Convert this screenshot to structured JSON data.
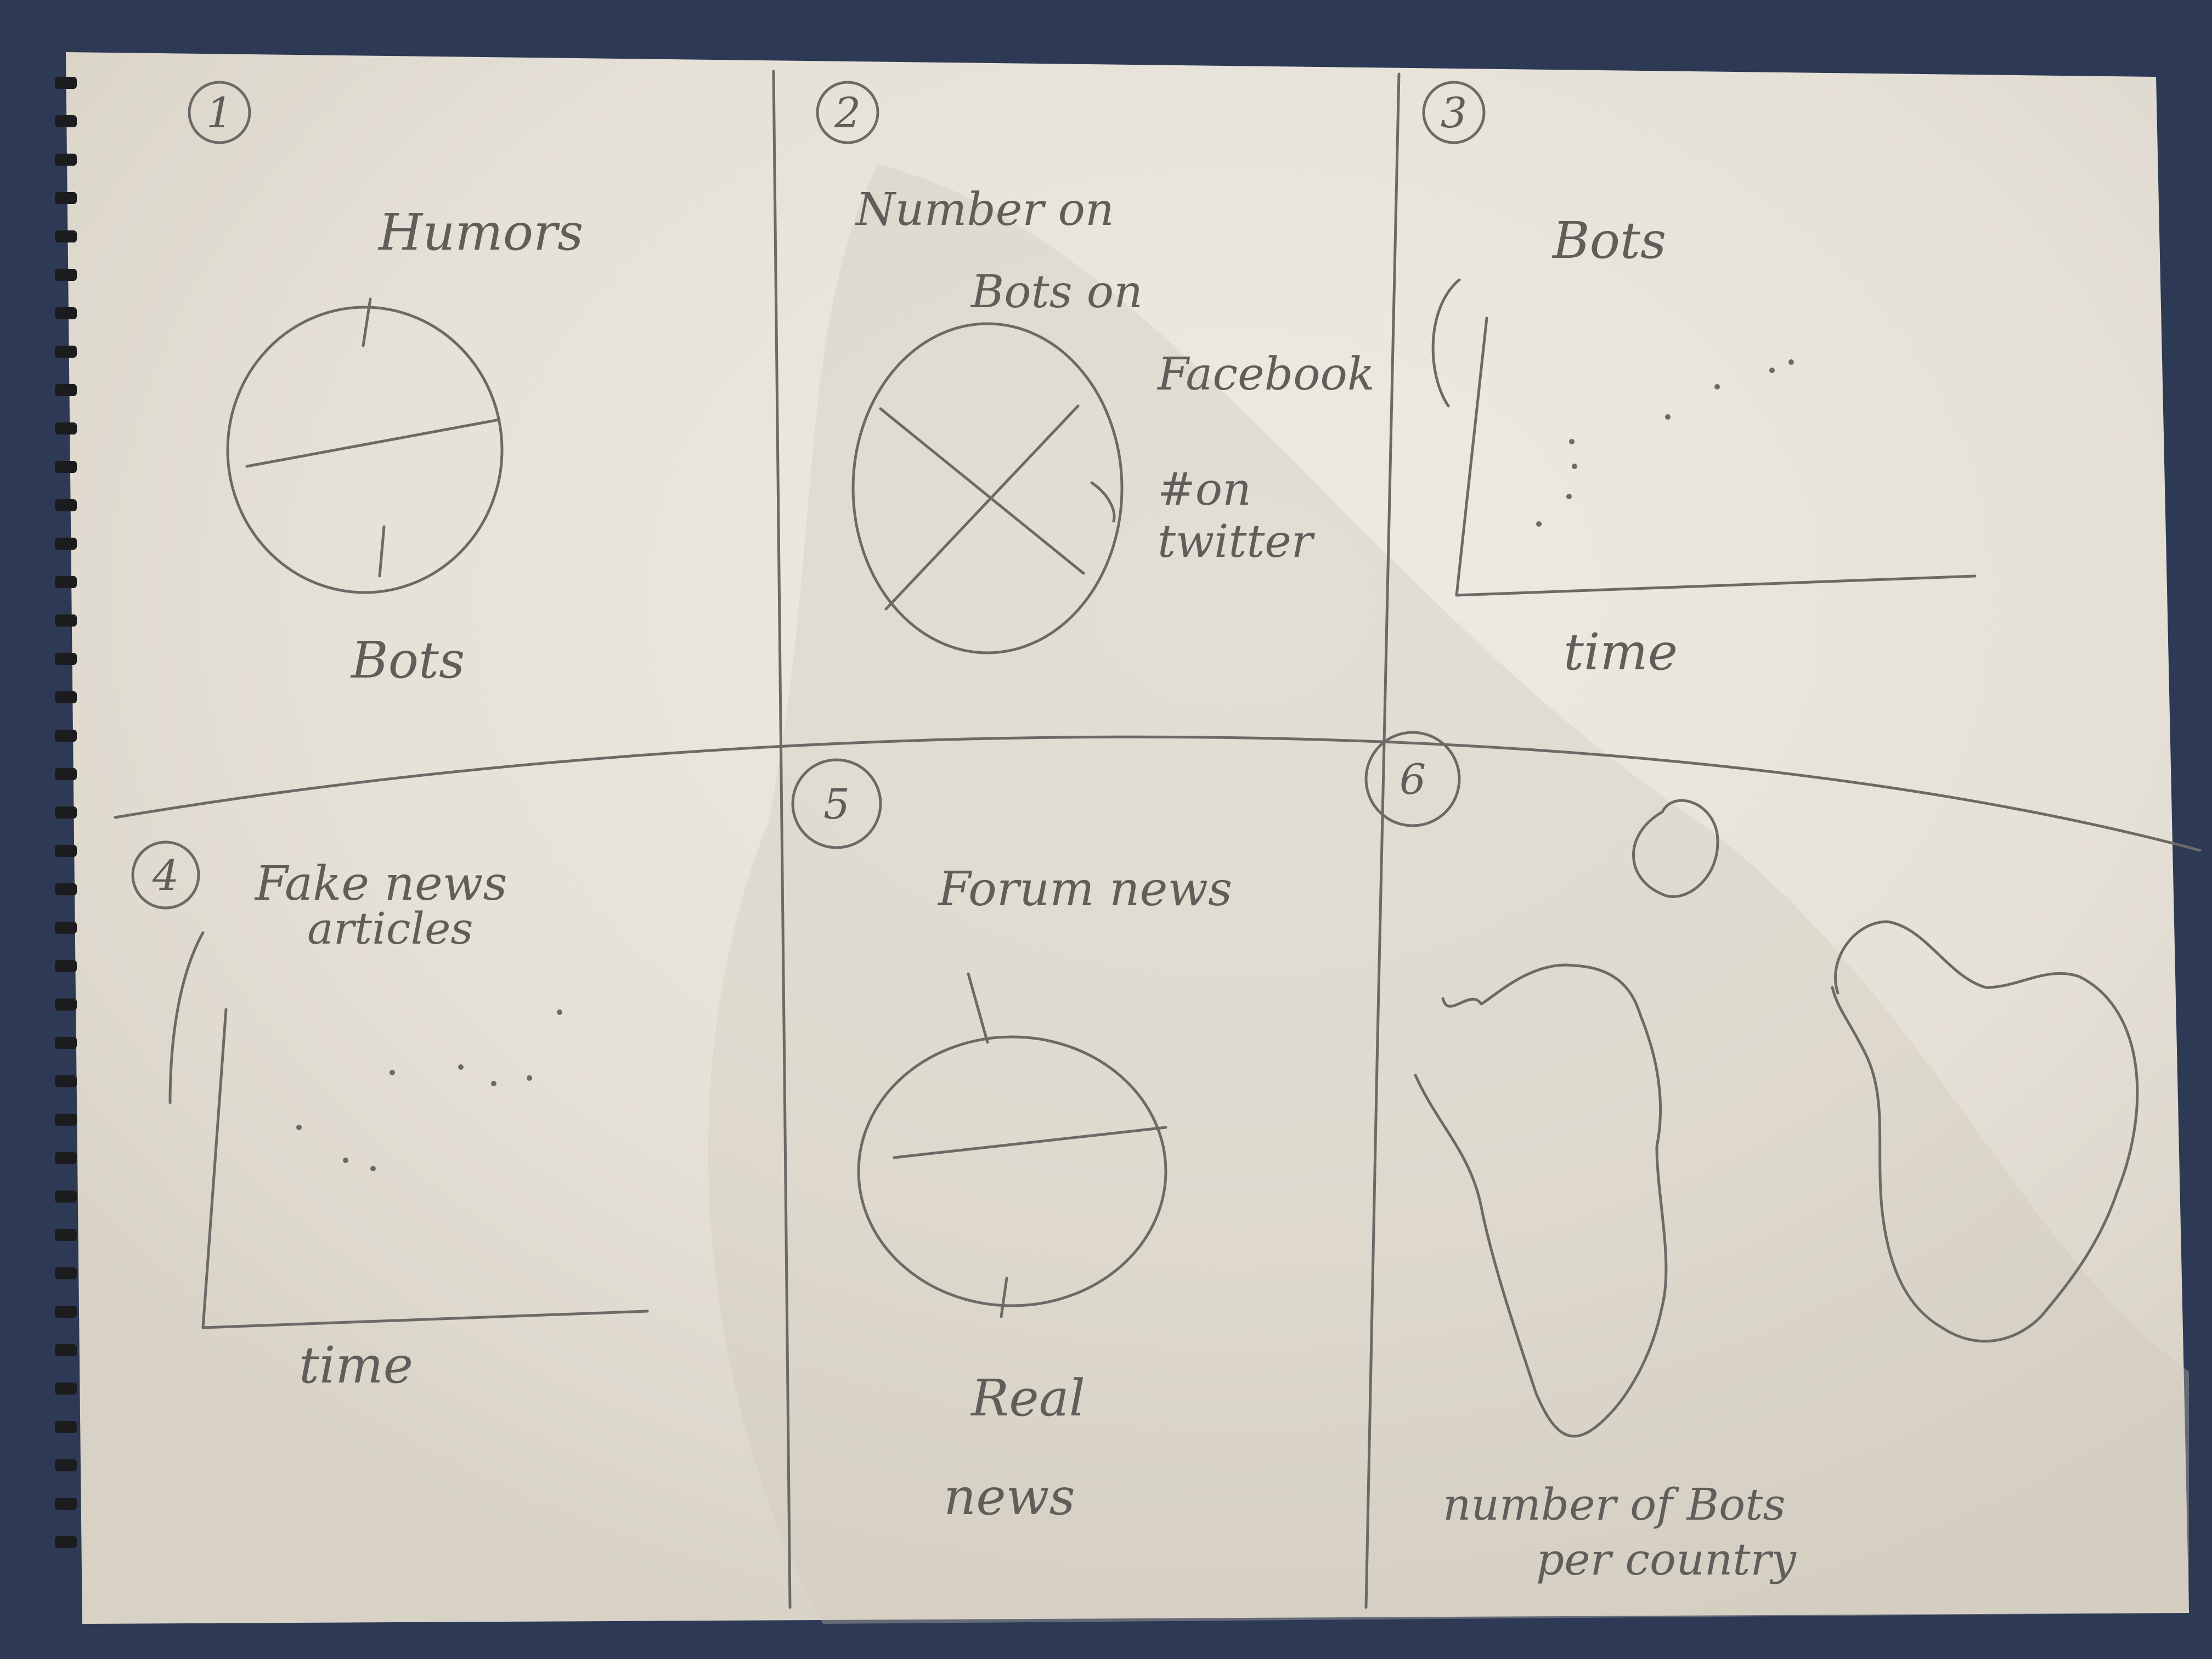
{
  "sketch": {
    "panels": [
      {
        "number": "1",
        "labels": [
          "Humors",
          "Bots"
        ]
      },
      {
        "number": "2",
        "labels": [
          "Number on",
          "Bots on",
          "Facebook",
          "#on",
          "twitter"
        ]
      },
      {
        "number": "3",
        "labels": [
          "Bots",
          "time"
        ]
      },
      {
        "number": "4",
        "labels": [
          "Fake news",
          "articles",
          "time"
        ]
      },
      {
        "number": "5",
        "labels": [
          "Forum news",
          "Real",
          "news"
        ]
      },
      {
        "number": "6",
        "labels": [
          "number of Bots",
          "per country"
        ]
      }
    ]
  },
  "colors": {
    "paper": "#ece8e0",
    "pencil": "#6b6a66",
    "table": "#2e3a55",
    "binding": "#1c1c1f"
  }
}
